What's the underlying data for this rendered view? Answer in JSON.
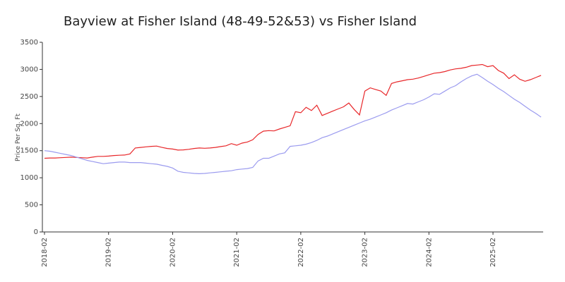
{
  "chart_data": {
    "type": "line",
    "title": "Bayview at Fisher Island (48-49-52&53) vs Fisher Island",
    "y_label": "Price Per Sq. Ft",
    "x": [
      "2018-02",
      "2018-03",
      "2018-04",
      "2018-05",
      "2018-06",
      "2018-07",
      "2018-08",
      "2018-09",
      "2018-10",
      "2018-11",
      "2018-12",
      "2019-01",
      "2019-02",
      "2019-03",
      "2019-04",
      "2019-05",
      "2019-06",
      "2019-07",
      "2019-08",
      "2019-09",
      "2019-10",
      "2019-11",
      "2019-12",
      "2020-01",
      "2020-02",
      "2020-03",
      "2020-04",
      "2020-05",
      "2020-06",
      "2020-07",
      "2020-08",
      "2020-09",
      "2020-10",
      "2020-11",
      "2020-12",
      "2021-01",
      "2021-02",
      "2021-03",
      "2021-04",
      "2021-05",
      "2021-06",
      "2021-07",
      "2021-08",
      "2021-09",
      "2021-10",
      "2021-11",
      "2021-12",
      "2022-01",
      "2022-02",
      "2022-03",
      "2022-04",
      "2022-05",
      "2022-06",
      "2022-07",
      "2022-08",
      "2022-09",
      "2022-10",
      "2022-11",
      "2022-12",
      "2023-01",
      "2023-02",
      "2023-03",
      "2023-04",
      "2023-05",
      "2023-06",
      "2023-07",
      "2023-08",
      "2023-09",
      "2023-10",
      "2023-11",
      "2023-12",
      "2024-01",
      "2024-02",
      "2024-03",
      "2024-04",
      "2024-05",
      "2024-06",
      "2024-07",
      "2024-08",
      "2024-09",
      "2024-10",
      "2024-11",
      "2024-12",
      "2025-01",
      "2025-02",
      "2025-03",
      "2025-04",
      "2025-05",
      "2025-06",
      "2025-07",
      "2025-08",
      "2025-09",
      "2025-10",
      "2025-11"
    ],
    "series": [
      {
        "color": "#e8272a",
        "values": [
          1360,
          1365,
          1365,
          1370,
          1375,
          1380,
          1375,
          1370,
          1365,
          1380,
          1395,
          1395,
          1400,
          1410,
          1415,
          1420,
          1440,
          1550,
          1560,
          1570,
          1580,
          1585,
          1560,
          1540,
          1530,
          1510,
          1515,
          1525,
          1540,
          1550,
          1545,
          1550,
          1560,
          1575,
          1590,
          1630,
          1600,
          1640,
          1660,
          1700,
          1800,
          1860,
          1870,
          1865,
          1900,
          1930,
          1960,
          2220,
          2200,
          2300,
          2240,
          2340,
          2150,
          2190,
          2230,
          2270,
          2310,
          2380,
          2260,
          2160,
          2600,
          2660,
          2630,
          2600,
          2520,
          2740,
          2770,
          2790,
          2810,
          2820,
          2840,
          2870,
          2900,
          2930,
          2940,
          2960,
          2990,
          3010,
          3020,
          3040,
          3070,
          3080,
          3090,
          3050,
          3070,
          2980,
          2930,
          2830,
          2900,
          2820,
          2780,
          2810,
          2850,
          2890
        ]
      },
      {
        "color": "#9b9bef",
        "values": [
          1500,
          1490,
          1470,
          1450,
          1430,
          1410,
          1380,
          1350,
          1320,
          1300,
          1280,
          1260,
          1270,
          1280,
          1290,
          1290,
          1280,
          1280,
          1280,
          1270,
          1260,
          1250,
          1230,
          1210,
          1180,
          1120,
          1100,
          1090,
          1080,
          1075,
          1080,
          1090,
          1100,
          1110,
          1120,
          1130,
          1150,
          1160,
          1170,
          1190,
          1310,
          1360,
          1360,
          1400,
          1440,
          1460,
          1580,
          1590,
          1600,
          1620,
          1650,
          1690,
          1740,
          1770,
          1810,
          1850,
          1890,
          1930,
          1970,
          2010,
          2050,
          2080,
          2120,
          2160,
          2200,
          2250,
          2290,
          2330,
          2370,
          2360,
          2400,
          2440,
          2490,
          2550,
          2540,
          2600,
          2660,
          2700,
          2770,
          2830,
          2880,
          2910,
          2850,
          2780,
          2720,
          2650,
          2590,
          2520,
          2450,
          2390,
          2320,
          2250,
          2190,
          2120
        ]
      }
    ],
    "xticks": [
      "2018-02",
      "2019-02",
      "2020-02",
      "2021-02",
      "2022-02",
      "2023-02",
      "2024-02",
      "2025-02"
    ],
    "ylim": [
      0,
      3500
    ],
    "yticks": [
      0,
      500,
      1000,
      1500,
      2000,
      2500,
      3000,
      3500
    ],
    "grid": false
  }
}
